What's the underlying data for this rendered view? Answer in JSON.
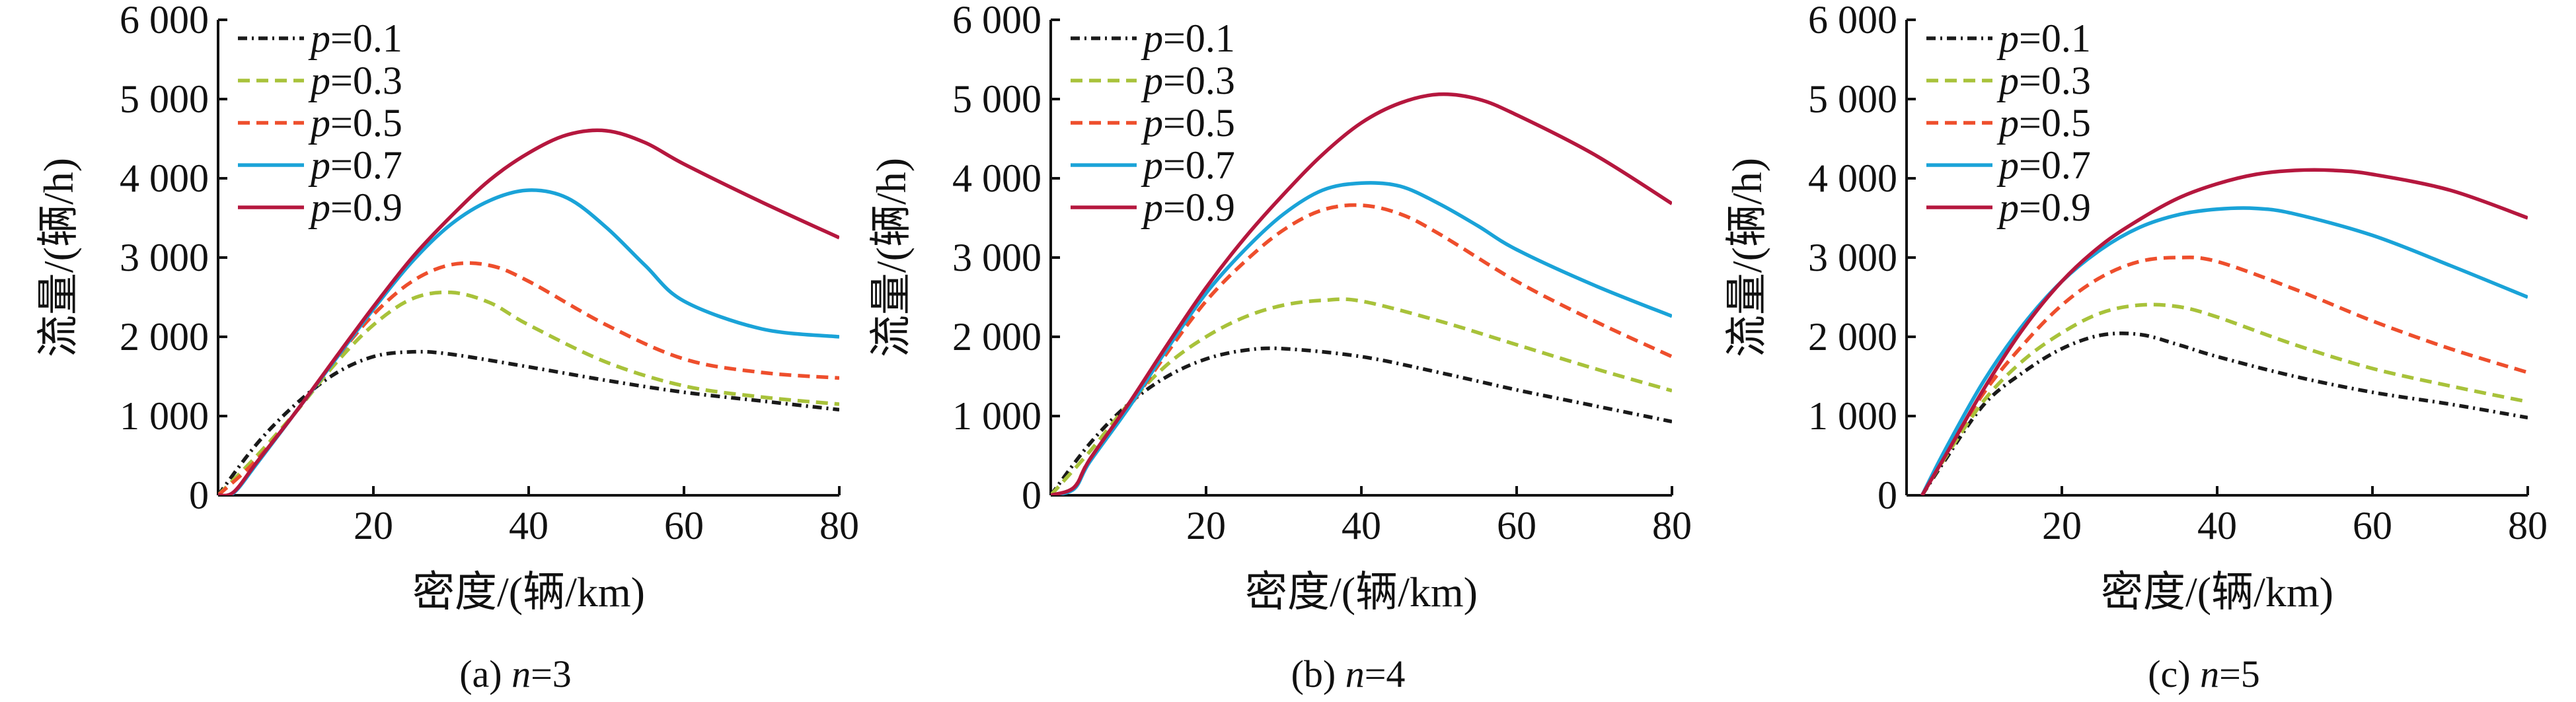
{
  "chart_data": [
    {
      "type": "line",
      "caption": "(a) n=3",
      "xlabel": "密度/(辆/km)",
      "ylabel": "流量/(辆/h)",
      "xlim": [
        0,
        80
      ],
      "ylim": [
        0,
        6000
      ],
      "xticks": [
        "20",
        "40",
        "60",
        "80"
      ],
      "yticks": [
        "0",
        "1 000",
        "2 000",
        "3 000",
        "4 000",
        "5 000",
        "6 000"
      ],
      "legend_position": "top-left",
      "series": [
        {
          "name": "p=0.1",
          "color": "#1a1a1a",
          "dash": "dashdot",
          "x": [
            0,
            5,
            10,
            15,
            20,
            25,
            30,
            40,
            50,
            60,
            70,
            80
          ],
          "y": [
            0,
            650,
            1150,
            1530,
            1750,
            1810,
            1780,
            1620,
            1450,
            1300,
            1190,
            1080
          ]
        },
        {
          "name": "p=0.3",
          "color": "#a8c23a",
          "dash": "dashed",
          "x": [
            0,
            5,
            10,
            15,
            20,
            25,
            30,
            35,
            40,
            50,
            60,
            70,
            80
          ],
          "y": [
            0,
            500,
            1050,
            1650,
            2150,
            2480,
            2560,
            2430,
            2150,
            1680,
            1380,
            1240,
            1150
          ]
        },
        {
          "name": "p=0.5",
          "color": "#ee4e2c",
          "dash": "dashed",
          "x": [
            0,
            5,
            10,
            15,
            20,
            25,
            30,
            35,
            40,
            50,
            60,
            70,
            80
          ],
          "y": [
            0,
            450,
            1050,
            1700,
            2280,
            2700,
            2910,
            2900,
            2700,
            2150,
            1720,
            1550,
            1480
          ]
        },
        {
          "name": "p=0.7",
          "color": "#1aa3d8",
          "dash": "solid",
          "x": [
            0,
            2,
            5,
            10,
            15,
            20,
            25,
            30,
            35,
            40,
            45,
            50,
            55,
            60,
            70,
            80
          ],
          "y": [
            0,
            30,
            400,
            1050,
            1700,
            2350,
            2950,
            3420,
            3720,
            3850,
            3750,
            3380,
            2900,
            2450,
            2100,
            2000
          ]
        },
        {
          "name": "p=0.9",
          "color": "#b5173e",
          "dash": "solid",
          "x": [
            0,
            2,
            5,
            10,
            15,
            20,
            25,
            30,
            35,
            40,
            45,
            50,
            55,
            60,
            70,
            80
          ],
          "y": [
            0,
            40,
            420,
            1050,
            1720,
            2380,
            3000,
            3520,
            3980,
            4320,
            4550,
            4600,
            4450,
            4180,
            3700,
            3250
          ]
        }
      ]
    },
    {
      "type": "line",
      "caption": "(b) n=4",
      "xlabel": "密度/(辆/km)",
      "ylabel": "流量/(辆/h)",
      "xlim": [
        0,
        80
      ],
      "ylim": [
        0,
        6000
      ],
      "xticks": [
        "20",
        "40",
        "60",
        "80"
      ],
      "yticks": [
        "0",
        "1 000",
        "2 000",
        "3 000",
        "4 000",
        "5 000",
        "6 000"
      ],
      "legend_position": "top-left",
      "series": [
        {
          "name": "p=0.1",
          "color": "#1a1a1a",
          "dash": "dashdot",
          "x": [
            0,
            5,
            10,
            15,
            20,
            25,
            30,
            40,
            50,
            60,
            70,
            80
          ],
          "y": [
            0,
            650,
            1150,
            1500,
            1720,
            1830,
            1850,
            1750,
            1550,
            1330,
            1130,
            930
          ]
        },
        {
          "name": "p=0.3",
          "color": "#a8c23a",
          "dash": "dashed",
          "x": [
            0,
            5,
            10,
            15,
            20,
            25,
            30,
            35,
            40,
            50,
            60,
            70,
            80
          ],
          "y": [
            0,
            550,
            1150,
            1650,
            2000,
            2250,
            2400,
            2460,
            2450,
            2200,
            1900,
            1600,
            1320
          ]
        },
        {
          "name": "p=0.5",
          "color": "#ee4e2c",
          "dash": "dashed",
          "x": [
            0,
            3,
            5,
            10,
            15,
            20,
            25,
            30,
            35,
            40,
            45,
            50,
            60,
            70,
            80
          ],
          "y": [
            0,
            100,
            450,
            1100,
            1800,
            2450,
            2950,
            3350,
            3600,
            3660,
            3550,
            3300,
            2700,
            2200,
            1750
          ]
        },
        {
          "name": "p=0.7",
          "color": "#1aa3d8",
          "dash": "solid",
          "x": [
            0,
            3,
            5,
            10,
            15,
            20,
            25,
            30,
            35,
            40,
            45,
            50,
            55,
            60,
            70,
            80
          ],
          "y": [
            0,
            80,
            420,
            1100,
            1850,
            2550,
            3100,
            3550,
            3850,
            3940,
            3900,
            3680,
            3400,
            3100,
            2650,
            2260
          ]
        },
        {
          "name": "p=0.9",
          "color": "#b5173e",
          "dash": "solid",
          "x": [
            0,
            3,
            5,
            10,
            15,
            20,
            25,
            30,
            35,
            40,
            45,
            50,
            55,
            60,
            70,
            80
          ],
          "y": [
            0,
            100,
            450,
            1150,
            1900,
            2620,
            3250,
            3800,
            4300,
            4700,
            4950,
            5060,
            5000,
            4800,
            4300,
            3680
          ]
        }
      ]
    },
    {
      "type": "line",
      "caption": "(c) n=5",
      "xlabel": "密度/(辆/km)",
      "ylabel": "流量/(辆/h)",
      "xlim": [
        0,
        80
      ],
      "ylim": [
        0,
        6000
      ],
      "xticks": [
        "20",
        "40",
        "60",
        "80"
      ],
      "yticks": [
        "0",
        "1 000",
        "2 000",
        "3 000",
        "4 000",
        "5 000",
        "6 000"
      ],
      "legend_position": "top-left",
      "series": [
        {
          "name": "p=0.1",
          "color": "#1a1a1a",
          "dash": "dashdot",
          "x": [
            2,
            5,
            10,
            15,
            20,
            25,
            30,
            35,
            40,
            50,
            60,
            70,
            80
          ],
          "y": [
            0,
            450,
            1150,
            1550,
            1850,
            2020,
            2030,
            1900,
            1750,
            1500,
            1300,
            1150,
            980
          ]
        },
        {
          "name": "p=0.3",
          "color": "#a8c23a",
          "dash": "dashed",
          "x": [
            2,
            5,
            10,
            15,
            20,
            25,
            30,
            35,
            40,
            50,
            60,
            70,
            80
          ],
          "y": [
            0,
            480,
            1200,
            1700,
            2050,
            2300,
            2400,
            2380,
            2250,
            1900,
            1600,
            1380,
            1180
          ]
        },
        {
          "name": "p=0.5",
          "color": "#ee4e2c",
          "dash": "dashed",
          "x": [
            2,
            5,
            10,
            15,
            20,
            25,
            30,
            35,
            40,
            50,
            60,
            70,
            80
          ],
          "y": [
            0,
            520,
            1300,
            1900,
            2400,
            2750,
            2950,
            3000,
            2950,
            2600,
            2200,
            1850,
            1550
          ]
        },
        {
          "name": "p=0.7",
          "color": "#1aa3d8",
          "dash": "solid",
          "x": [
            2,
            5,
            10,
            15,
            20,
            25,
            30,
            35,
            40,
            45,
            50,
            60,
            70,
            80
          ],
          "y": [
            0,
            580,
            1450,
            2150,
            2700,
            3100,
            3380,
            3540,
            3610,
            3620,
            3550,
            3280,
            2900,
            2500
          ]
        },
        {
          "name": "p=0.9",
          "color": "#b5173e",
          "dash": "solid",
          "x": [
            2,
            5,
            10,
            15,
            20,
            25,
            30,
            35,
            40,
            45,
            50,
            55,
            60,
            70,
            80
          ],
          "y": [
            0,
            500,
            1350,
            2100,
            2700,
            3150,
            3480,
            3750,
            3930,
            4050,
            4100,
            4100,
            4050,
            3850,
            3500
          ]
        }
      ]
    }
  ]
}
